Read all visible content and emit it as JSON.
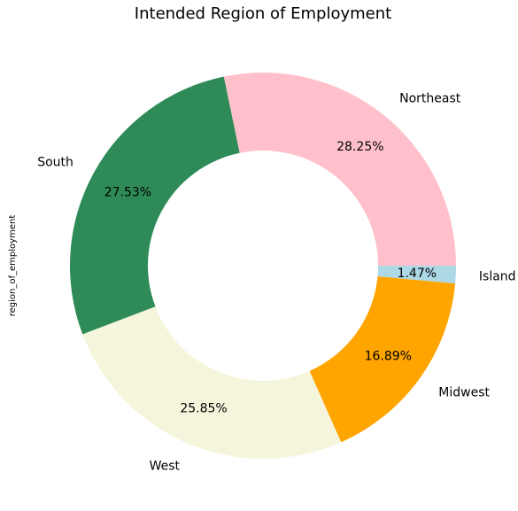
{
  "chart_data": {
    "type": "pie",
    "variant": "donut",
    "title": "Intended Region of Employment",
    "ylabel": "region_of_employment",
    "start_angle_deg": 0,
    "direction": "counterclockwise",
    "slices": [
      {
        "label": "Northeast",
        "value": 28.25,
        "pct_label": "28.25%",
        "color": "#FFC0CB"
      },
      {
        "label": "South",
        "value": 27.53,
        "pct_label": "27.53%",
        "color": "#2E8B57"
      },
      {
        "label": "West",
        "value": 25.85,
        "pct_label": "25.85%",
        "color": "#F5F5DC"
      },
      {
        "label": "Midwest",
        "value": 16.89,
        "pct_label": "16.89%",
        "color": "#FFA500"
      },
      {
        "label": "Island",
        "value": 1.47,
        "pct_label": "1.47%",
        "color": "#ADD8E6"
      }
    ]
  }
}
